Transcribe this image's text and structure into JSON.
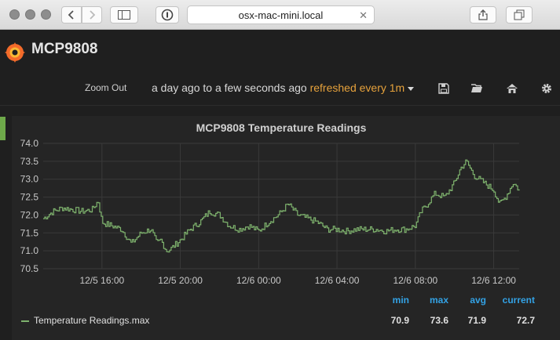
{
  "browser": {
    "url": "osx-mac-mini.local",
    "icons": [
      "back-icon",
      "forward-icon",
      "sidebar-icon",
      "reader-icon",
      "share-icon",
      "tabs-icon",
      "clear-icon"
    ]
  },
  "header": {
    "title": "MCP9808",
    "zoom_out": "Zoom Out",
    "time_range": "a day ago to a few seconds ago",
    "refresh": "refreshed every 1m",
    "icons": [
      "save-icon",
      "folder-open-icon",
      "home-icon",
      "gear-icon"
    ]
  },
  "panel": {
    "title": "MCP9808 Temperature Readings",
    "legend": {
      "headers": {
        "min": "min",
        "max": "max",
        "avg": "avg",
        "current": "current"
      },
      "series_name": "Temperature Readings.max",
      "min": "70.9",
      "max": "73.6",
      "avg": "71.9",
      "current": "72.7"
    }
  },
  "colors": {
    "series": "#7eb26d",
    "legend_header": "#33a2e5",
    "refresh": "#e6a23c",
    "accent": "#6ea94a"
  },
  "chart_data": {
    "type": "line",
    "ylim": [
      70.5,
      74.0
    ],
    "yticks": [
      "74.0",
      "73.5",
      "73.0",
      "72.5",
      "72.0",
      "71.5",
      "71.0",
      "70.5"
    ],
    "xticks": [
      "12/5 16:00",
      "12/5 20:00",
      "12/6 00:00",
      "12/6 04:00",
      "12/6 08:00",
      "12/6 12:00"
    ],
    "xtick_hours": [
      3,
      7,
      11,
      15,
      19,
      23
    ],
    "xlim_hours": [
      0,
      24.3
    ],
    "series": [
      {
        "name": "Temperature Readings.max",
        "x_hours": [
          0,
          0.5,
          1,
          1.5,
          2,
          2.5,
          2.8,
          3,
          3.2,
          3.5,
          4,
          4.5,
          5,
          5.5,
          5.8,
          6,
          6.3,
          6.5,
          7,
          7.5,
          8,
          8.5,
          9,
          9.5,
          10,
          10.5,
          11,
          11.5,
          12,
          12.5,
          13,
          13.5,
          14,
          14.5,
          15,
          15.5,
          16,
          16.5,
          17,
          17.5,
          18,
          18.5,
          19,
          19.3,
          19.6,
          20,
          20.5,
          21,
          21.3,
          21.6,
          22,
          22.5,
          23,
          23.3,
          23.6,
          24,
          24.3
        ],
        "values": [
          71.9,
          72.1,
          72.2,
          72.15,
          72.1,
          72.15,
          72.4,
          71.8,
          71.75,
          71.7,
          71.6,
          71.2,
          71.5,
          71.6,
          71.2,
          71.3,
          71.0,
          71.05,
          71.3,
          71.6,
          71.8,
          72.1,
          72.0,
          71.7,
          71.6,
          71.7,
          71.55,
          71.8,
          72.0,
          72.3,
          72.0,
          71.9,
          71.8,
          71.6,
          71.6,
          71.55,
          71.6,
          71.6,
          71.6,
          71.55,
          71.6,
          71.6,
          71.7,
          72.1,
          72.3,
          72.6,
          72.5,
          72.9,
          73.3,
          73.5,
          73.1,
          72.9,
          72.7,
          72.3,
          72.5,
          72.9,
          72.7
        ]
      }
    ]
  }
}
